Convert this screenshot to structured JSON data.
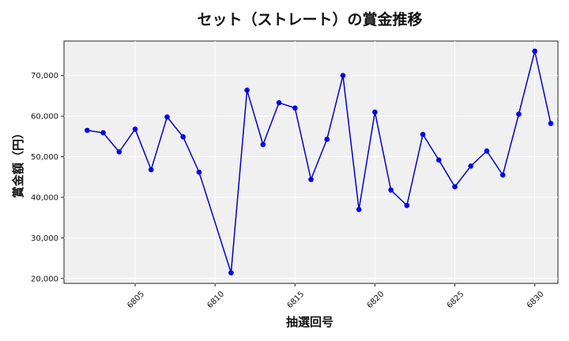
{
  "chart_data": {
    "type": "line",
    "title": "セット（ストレート）の賞金推移",
    "xlabel": "抽選回号",
    "ylabel": "賞金額（円）",
    "xlim": [
      6800.55,
      6831.45
    ],
    "ylim": [
      18800,
      78500
    ],
    "x_ticks": [
      6805,
      6810,
      6815,
      6820,
      6825,
      6830
    ],
    "x_tick_labels": [
      "6805",
      "6810",
      "6815",
      "6820",
      "6825",
      "6830"
    ],
    "y_ticks": [
      20000,
      30000,
      40000,
      50000,
      60000,
      70000
    ],
    "y_tick_labels": [
      "20,000",
      "30,000",
      "40,000",
      "50,000",
      "60,000",
      "70,000"
    ],
    "grid": true,
    "colors": {
      "line": "#0000cc",
      "marker": "#0000ee",
      "plot_bg": "#f0f0f0",
      "grid": "#ffffff"
    },
    "series": [
      {
        "x": [
          6802,
          6803,
          6804,
          6805,
          6806,
          6807,
          6808,
          6809,
          6810,
          6811,
          6812,
          6813,
          6814,
          6815,
          6816,
          6817,
          6818,
          6819,
          6820,
          6821,
          6822,
          6823,
          6824,
          6825,
          6826,
          6827,
          6828,
          6829,
          6830,
          6831
        ],
        "values": [
          56500,
          55900,
          51200,
          56800,
          46800,
          59800,
          54900,
          46200,
          null,
          21400,
          66400,
          53000,
          63300,
          62000,
          44400,
          54300,
          70000,
          37000,
          61000,
          41800,
          38000,
          55500,
          49200,
          42600,
          47700,
          51400,
          45500,
          60500,
          76000,
          58200
        ]
      }
    ]
  }
}
